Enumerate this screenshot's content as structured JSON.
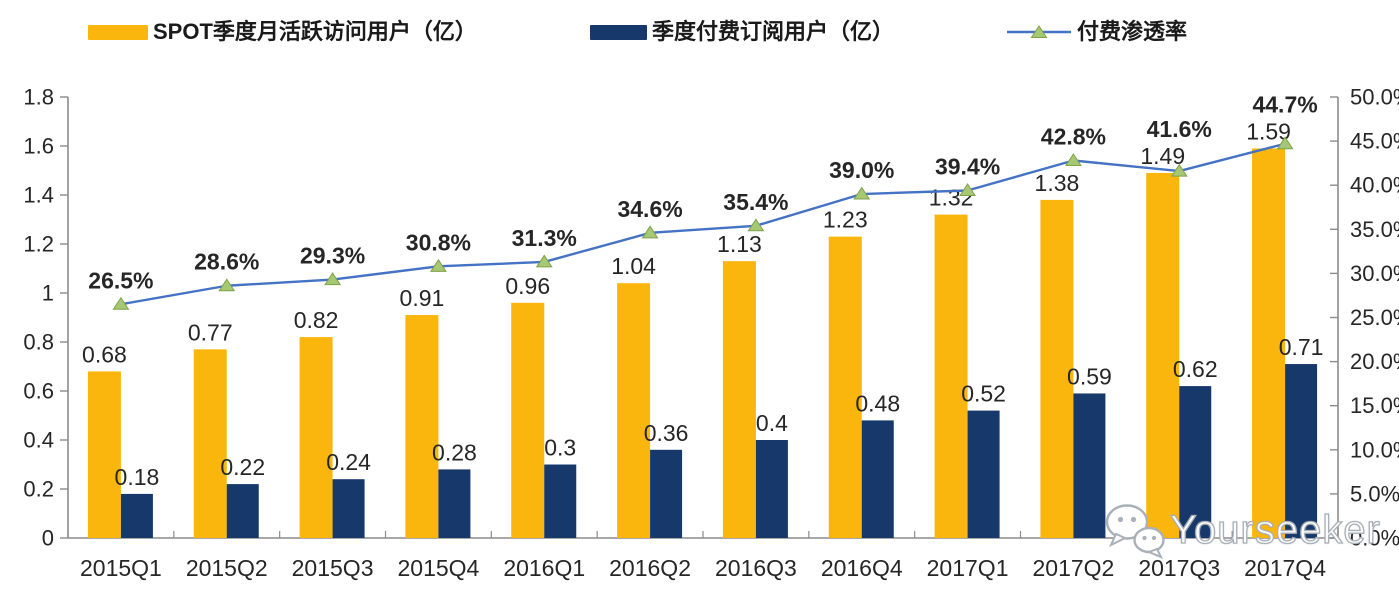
{
  "chart_data": {
    "type": "bar",
    "subtype": "combo-bar-line",
    "title": "",
    "grid": false,
    "legend_position": "top",
    "categories": [
      "2015Q1",
      "2015Q2",
      "2015Q3",
      "2015Q4",
      "2016Q1",
      "2016Q2",
      "2016Q3",
      "2016Q4",
      "2017Q1",
      "2017Q2",
      "2017Q3",
      "2017Q4"
    ],
    "series": [
      {
        "name": "SPOT季度月活跃访问用户（亿）",
        "type": "bar",
        "axis": "left",
        "color": "#FBB60D",
        "values": [
          0.68,
          0.77,
          0.82,
          0.91,
          0.96,
          1.04,
          1.13,
          1.23,
          1.32,
          1.38,
          1.49,
          1.59
        ],
        "labels": [
          "0.68",
          "0.77",
          "0.82",
          "0.91",
          "0.96",
          "1.04",
          "1.13",
          "1.23",
          "1.32",
          "1.38",
          "1.49",
          "1.59"
        ]
      },
      {
        "name": "季度付费订阅用户（亿）",
        "type": "bar",
        "axis": "left",
        "color": "#17386B",
        "values": [
          0.18,
          0.22,
          0.24,
          0.28,
          0.3,
          0.36,
          0.4,
          0.48,
          0.52,
          0.59,
          0.62,
          0.71
        ],
        "labels": [
          "0.18",
          "0.22",
          "0.24",
          "0.28",
          "0.3",
          "0.36",
          "0.4",
          "0.48",
          "0.52",
          "0.59",
          "0.62",
          "0.71"
        ]
      },
      {
        "name": "付费渗透率",
        "type": "line",
        "axis": "right",
        "color": "#4472C4",
        "marker": "triangle",
        "marker_color": "#A6C872",
        "marker_stroke": "#7FA14C",
        "values": [
          26.5,
          28.6,
          29.3,
          30.8,
          31.3,
          34.6,
          35.4,
          39.0,
          39.4,
          42.8,
          41.6,
          44.7
        ],
        "labels": [
          "26.5%",
          "28.6%",
          "29.3%",
          "30.8%",
          "31.3%",
          "34.6%",
          "35.4%",
          "39.0%",
          "39.4%",
          "42.8%",
          "41.6%",
          "44.7%"
        ]
      }
    ],
    "left_axis": {
      "min": 0,
      "max": 1.8,
      "tick_values": [
        0,
        0.2,
        0.4,
        0.6,
        0.8,
        1,
        1.2,
        1.4,
        1.6,
        1.8
      ],
      "tick_labels": [
        "0",
        "0.2",
        "0.4",
        "0.6",
        "0.8",
        "1",
        "1.2",
        "1.4",
        "1.6",
        "1.8"
      ]
    },
    "right_axis": {
      "min": 0,
      "max": 50,
      "tick_values": [
        0,
        5,
        10,
        15,
        20,
        25,
        30,
        35,
        40,
        45,
        50
      ],
      "tick_labels": [
        "0.0%",
        "5.0%",
        "10.0%",
        "15.0%",
        "20.0%",
        "25.0%",
        "30.0%",
        "35.0%",
        "40.0%",
        "45.0%",
        "50.0%"
      ]
    },
    "axis_color": "#8C8C8C",
    "label_color": "#262626"
  },
  "watermark": {
    "text": "Yourseeker"
  }
}
